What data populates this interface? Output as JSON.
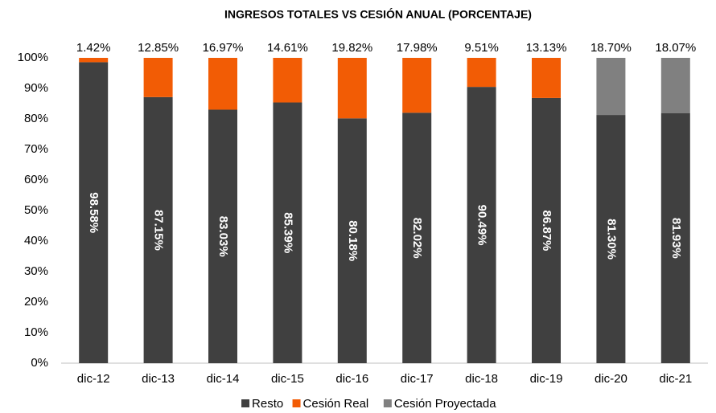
{
  "chart_data": {
    "type": "stacked_bar",
    "title": "INGRESOS TOTALES VS CESIÓN ANUAL (PORCENTAJE)",
    "categories": [
      "dic-12",
      "dic-13",
      "dic-14",
      "dic-15",
      "dic-16",
      "dic-17",
      "dic-18",
      "dic-19",
      "dic-20",
      "dic-21"
    ],
    "series": [
      {
        "name": "Resto",
        "color": "#404040",
        "values": [
          98.58,
          87.15,
          83.03,
          85.39,
          80.18,
          82.02,
          90.49,
          86.87,
          81.3,
          81.93
        ],
        "value_labels": [
          "98.58%",
          "87.15%",
          "83.03%",
          "85.39%",
          "80.18%",
          "82.02%",
          "90.49%",
          "86.87%",
          "81.30%",
          "81.93%"
        ]
      },
      {
        "name": "Cesión Real",
        "color": "#f25c05",
        "values": [
          1.42,
          12.85,
          16.97,
          14.61,
          19.82,
          17.98,
          9.51,
          13.13,
          null,
          null
        ],
        "value_labels": [
          "1.42%",
          "12.85%",
          "16.97%",
          "14.61%",
          "19.82%",
          "17.98%",
          "9.51%",
          "13.13%",
          null,
          null
        ]
      },
      {
        "name": "Cesión Proyectada",
        "color": "#808080",
        "values": [
          null,
          null,
          null,
          null,
          null,
          null,
          null,
          null,
          18.7,
          18.07
        ],
        "value_labels": [
          null,
          null,
          null,
          null,
          null,
          null,
          null,
          null,
          "18.70%",
          "18.07%"
        ]
      }
    ],
    "ylim": [
      0,
      100
    ],
    "yticks": [
      {
        "value": 0,
        "label": "0%"
      },
      {
        "value": 10,
        "label": "10%"
      },
      {
        "value": 20,
        "label": "20%"
      },
      {
        "value": 30,
        "label": "30%"
      },
      {
        "value": 40,
        "label": "40%"
      },
      {
        "value": 50,
        "label": "50%"
      },
      {
        "value": 60,
        "label": "60%"
      },
      {
        "value": 70,
        "label": "70%"
      },
      {
        "value": 80,
        "label": "80%"
      },
      {
        "value": 90,
        "label": "90%"
      },
      {
        "value": 100,
        "label": "100%"
      }
    ],
    "legend": "bottom"
  }
}
